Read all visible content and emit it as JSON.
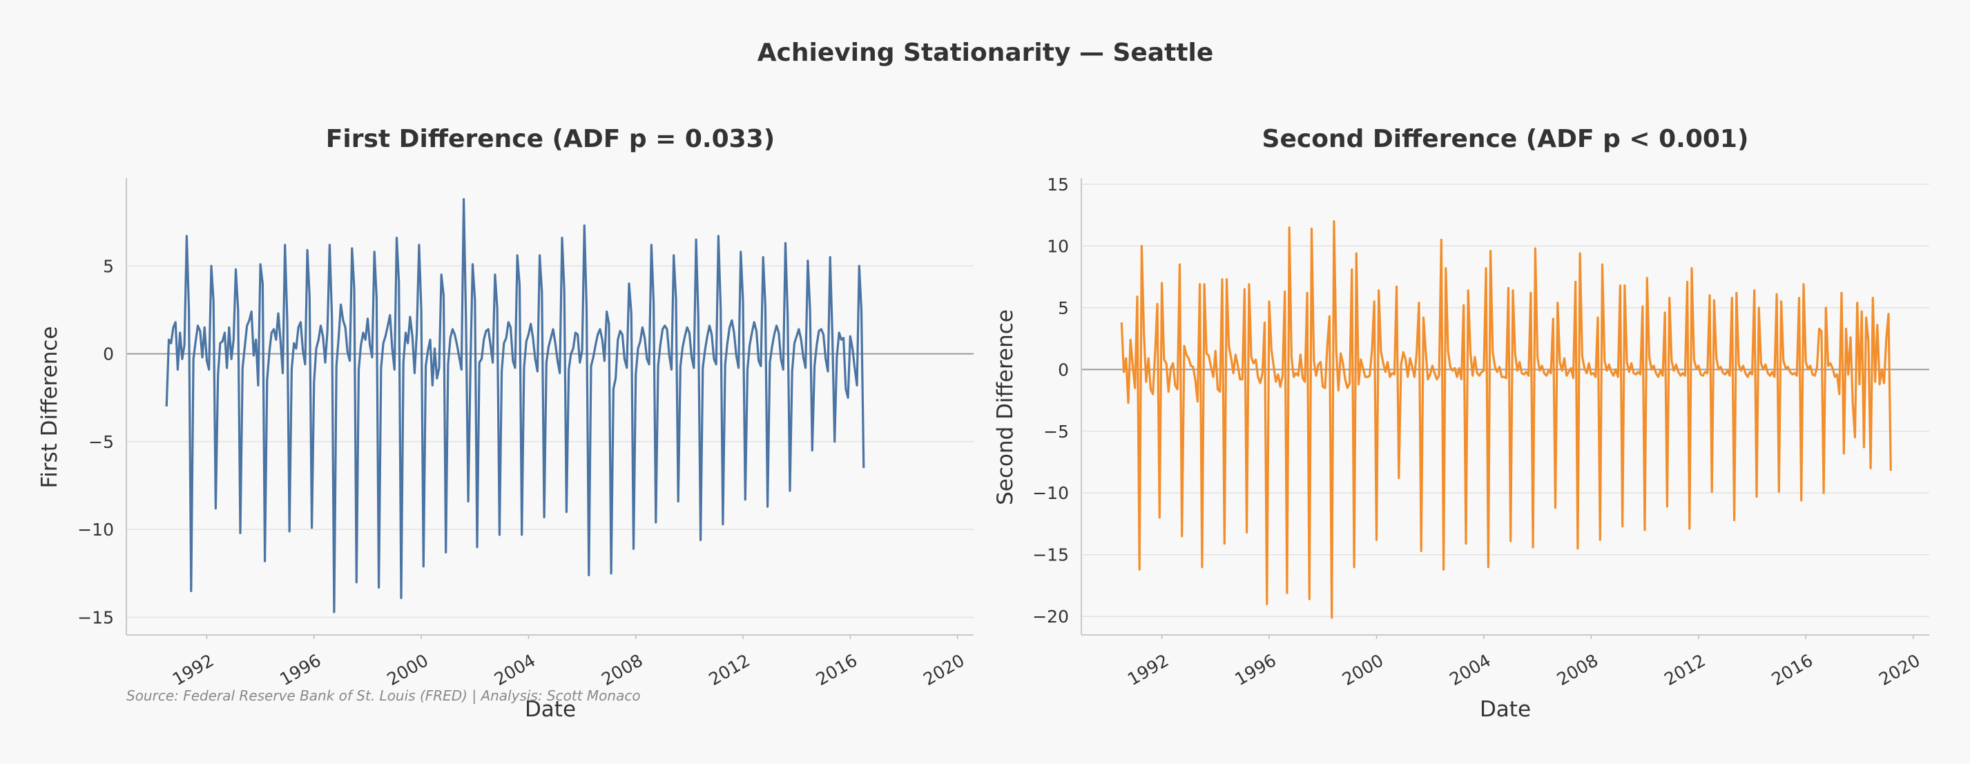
{
  "suptitle": "Achieving Stationarity — Seattle",
  "source": "Source: Federal Reserve Bank of St. Louis (FRED) | Analysis: Scott Monaco",
  "chart_data": [
    {
      "type": "line",
      "title": "First Difference (ADF p = 0.033)",
      "xlabel": "Date",
      "ylabel": "First Difference",
      "color": "#4a74a3",
      "xlim": [
        1989.0,
        2020.6
      ],
      "ylim": [
        -16,
        10
      ],
      "yticks": [
        5,
        0,
        -5,
        -10,
        -15
      ],
      "xticks": [
        1992,
        1996,
        2000,
        2004,
        2008,
        2012,
        2016,
        2020
      ],
      "grid": true,
      "zero_line": true,
      "series": [
        {
          "x_start": 1990.5,
          "step": 0.08333,
          "values": [
            -3.0,
            0.8,
            0.6,
            1.5,
            1.8,
            -0.9,
            1.2,
            -0.3,
            0.5,
            6.7,
            2.5,
            -13.5,
            -0.3,
            0.7,
            1.6,
            1.3,
            -0.2,
            1.5,
            -0.4,
            -0.9,
            5.0,
            3.0,
            -8.8,
            -1.2,
            0.6,
            0.7,
            1.2,
            -0.8,
            1.5,
            -0.3,
            0.8,
            4.8,
            2.5,
            -10.2,
            -0.8,
            0.4,
            1.6,
            1.9,
            2.4,
            -0.1,
            0.8,
            -1.8,
            5.1,
            4.0,
            -11.8,
            -1.5,
            0.1,
            1.2,
            1.4,
            0.8,
            2.3,
            0.7,
            -1.1,
            6.2,
            1.9,
            -10.1,
            -0.9,
            0.6,
            0.3,
            1.5,
            1.8,
            0.2,
            -0.6,
            5.9,
            3.3,
            -9.9,
            -1.6,
            0.3,
            0.8,
            1.6,
            1.0,
            -0.5,
            1.3,
            6.2,
            2.1,
            -14.7,
            -0.7,
            0.9,
            2.8,
            1.9,
            1.5,
            0.1,
            -0.4,
            6.0,
            3.7,
            -13.0,
            -0.9,
            0.5,
            1.2,
            0.8,
            2.0,
            0.5,
            -0.2,
            5.8,
            3.2,
            -13.3,
            -0.8,
            0.6,
            1.0,
            1.6,
            2.2,
            0.3,
            -0.9,
            6.6,
            4.1,
            -13.9,
            -0.5,
            1.2,
            0.6,
            2.1,
            1.0,
            -1.1,
            1.2,
            6.2,
            2.5,
            -12.1,
            -0.7,
            0.2,
            0.8,
            -1.8,
            0.3,
            -1.4,
            -0.8,
            4.5,
            3.3,
            -11.3,
            -0.6,
            0.9,
            1.4,
            1.1,
            0.5,
            -0.2,
            -0.9,
            8.8,
            2.0,
            -8.4,
            -0.7,
            5.1,
            3.1,
            -11.0,
            -0.5,
            -0.3,
            0.8,
            1.3,
            1.4,
            0.5,
            -0.5,
            4.5,
            2.6,
            -10.3,
            -1.0,
            0.6,
            0.9,
            1.8,
            1.5,
            -0.4,
            -0.8,
            5.6,
            3.9,
            -10.3,
            -0.8,
            0.7,
            1.1,
            1.7,
            0.9,
            -0.3,
            -1.0,
            5.6,
            3.5,
            -9.3,
            -0.5,
            0.4,
            0.9,
            1.4,
            0.6,
            -0.4,
            -1.1,
            6.6,
            3.6,
            -9.0,
            -0.9,
            0.0,
            0.3,
            1.2,
            1.1,
            -0.5,
            0.2,
            7.3,
            2.6,
            -12.6,
            -0.7,
            -0.2,
            0.5,
            1.1,
            1.4,
            0.8,
            -0.4,
            2.4,
            1.7,
            -12.5,
            -2.0,
            -1.4,
            0.8,
            1.3,
            1.1,
            -0.3,
            -0.8,
            4.0,
            2.3,
            -11.1,
            -1.2,
            0.3,
            0.7,
            1.5,
            0.9,
            -0.3,
            -0.6,
            6.2,
            2.9,
            -9.6,
            -0.7,
            0.5,
            1.4,
            1.6,
            1.4,
            -0.1,
            -0.9,
            5.6,
            3.1,
            -8.4,
            -0.7,
            0.4,
            1.0,
            1.5,
            1.2,
            -0.2,
            -0.8,
            6.5,
            2.1,
            -10.6,
            -0.8,
            0.2,
            1.0,
            1.6,
            1.1,
            -0.3,
            -0.6,
            6.7,
            2.6,
            -9.7,
            -0.6,
            0.6,
            1.5,
            1.9,
            1.2,
            -0.1,
            -0.8,
            5.8,
            3.0,
            -8.3,
            -0.9,
            0.5,
            1.2,
            1.8,
            1.3,
            -0.4,
            -0.7,
            5.5,
            2.7,
            -8.7,
            -0.5,
            0.4,
            1.1,
            1.6,
            1.2,
            -0.3,
            -0.9,
            6.3,
            2.2,
            -7.8,
            -1.0,
            0.6,
            1.0,
            1.4,
            0.8,
            -0.2,
            -0.8,
            5.3,
            2.5,
            -5.5,
            -0.7,
            0.5,
            1.3,
            1.4,
            1.1,
            -0.3,
            -1.0,
            5.5,
            1.0,
            -5.0,
            -0.2,
            1.2,
            0.8,
            0.9,
            -2.0,
            -2.5,
            1.0,
            0.3,
            -0.8,
            -1.8,
            5.0,
            2.5,
            -6.5
          ]
        }
      ]
    },
    {
      "type": "line",
      "title": "Second Difference (ADF p < 0.001)",
      "xlabel": "Date",
      "ylabel": "Second Difference",
      "color": "#f28e2b",
      "xlim": [
        1989.0,
        2020.6
      ],
      "ylim": [
        -21.5,
        15.5
      ],
      "yticks": [
        15,
        10,
        5,
        0,
        -5,
        -10,
        -15,
        -20
      ],
      "xticks": [
        1992,
        1996,
        2000,
        2004,
        2008,
        2012,
        2016,
        2020
      ],
      "grid": true,
      "zero_line": true,
      "series": [
        {
          "x_start": 1990.5,
          "step": 0.08333,
          "values": [
            3.8,
            -0.2,
            0.9,
            -2.7,
            2.4,
            0.3,
            -1.5,
            5.9,
            -16.2,
            10.0,
            2.8,
            -1.0,
            0.9,
            -1.6,
            -2.0,
            1.4,
            5.3,
            -12.0,
            7.0,
            0.8,
            0.5,
            -1.8,
            0.1,
            0.5,
            -1.3,
            -1.6,
            8.5,
            -13.5,
            1.9,
            1.2,
            0.9,
            0.3,
            0.2,
            -0.9,
            -2.6,
            6.9,
            -16.0,
            6.9,
            1.3,
            1.1,
            0.2,
            -0.6,
            1.5,
            -1.6,
            -1.8,
            7.3,
            -14.1,
            7.3,
            1.9,
            0.9,
            -0.3,
            1.2,
            0.3,
            -0.8,
            -0.8,
            6.5,
            -13.2,
            6.9,
            1.0,
            0.5,
            0.8,
            -0.6,
            -1.1,
            -0.3,
            3.8,
            -19.0,
            5.5,
            1.6,
            0.3,
            -1.0,
            -0.4,
            -1.4,
            -0.5,
            6.3,
            -18.1,
            11.5,
            1.0,
            -0.6,
            -0.3,
            -0.5,
            1.2,
            -0.7,
            -1.0,
            6.2,
            -18.6,
            11.4,
            0.7,
            -0.5,
            0.4,
            0.6,
            -1.4,
            -1.5,
            1.9,
            4.3,
            -20.1,
            12.0,
            1.5,
            -1.7,
            1.3,
            0.5,
            -0.8,
            -1.5,
            -1.1,
            8.1,
            -16.0,
            9.4,
            -1.2,
            0.8,
            0.1,
            -0.6,
            -0.6,
            -0.5,
            1.6,
            5.5,
            -13.8,
            6.4,
            1.5,
            0.5,
            -0.2,
            0.6,
            -0.6,
            -0.3,
            -0.4,
            6.7,
            -8.8,
            0.4,
            1.4,
            0.8,
            -0.6,
            0.9,
            0.2,
            -0.6,
            1.4,
            5.4,
            -14.7,
            4.2,
            1.5,
            -0.8,
            -0.4,
            0.3,
            -0.3,
            -0.8,
            -0.5,
            10.5,
            -16.2,
            8.2,
            1.5,
            0.2,
            -0.1,
            0.1,
            -0.6,
            0.1,
            -0.8,
            5.2,
            -14.1,
            6.4,
            1.4,
            -0.5,
            1.0,
            -0.3,
            -0.5,
            -0.2,
            -0.1,
            8.2,
            -16.0,
            9.6,
            1.4,
            0.2,
            -0.2,
            0.2,
            -0.6,
            -0.6,
            -0.7,
            6.6,
            -13.9,
            6.4,
            1.3,
            -0.1,
            0.6,
            -0.3,
            -0.4,
            -0.2,
            -0.5,
            6.2,
            -14.4,
            9.8,
            1.0,
            -0.1,
            0.3,
            -0.3,
            -0.5,
            -0.1,
            -0.3,
            4.1,
            -11.2,
            5.4,
            0.6,
            -0.1,
            0.9,
            -0.5,
            -0.2,
            0.1,
            -0.7,
            7.1,
            -14.5,
            9.4,
            1.1,
            0.1,
            -0.3,
            0.5,
            -0.4,
            -0.3,
            -0.6,
            4.2,
            -13.8,
            8.5,
            0.7,
            -0.1,
            0.4,
            -0.2,
            -0.5,
            0.0,
            -0.6,
            6.8,
            -12.7,
            6.8,
            0.6,
            -0.2,
            0.5,
            -0.3,
            -0.4,
            -0.2,
            -0.4,
            5.1,
            -13.0,
            7.4,
            1.0,
            0.0,
            0.3,
            -0.3,
            -0.6,
            -0.1,
            -0.5,
            4.6,
            -11.1,
            5.8,
            0.7,
            -0.1,
            0.4,
            -0.2,
            -0.5,
            -0.3,
            -0.5,
            7.1,
            -12.9,
            8.2,
            0.8,
            0.1,
            0.3,
            -0.4,
            -0.5,
            -0.2,
            -0.3,
            6.0,
            -9.9,
            5.6,
            0.9,
            0.0,
            0.2,
            -0.3,
            -0.4,
            -0.1,
            -0.5,
            5.8,
            -12.2,
            6.2,
            0.4,
            -0.1,
            0.3,
            -0.3,
            -0.6,
            -0.2,
            -0.4,
            6.4,
            -10.3,
            5.0,
            0.5,
            0.0,
            0.4,
            -0.3,
            -0.5,
            -0.2,
            -0.6,
            6.1,
            -9.9,
            5.5,
            0.7,
            0.1,
            0.2,
            -0.2,
            -0.4,
            -0.3,
            -0.5,
            5.8,
            -10.6,
            6.9,
            0.6,
            0.0,
            0.3,
            -0.4,
            -0.5,
            0.1,
            3.3,
            3.1,
            -10.0,
            5.0,
            0.3,
            0.5,
            0.1,
            -0.6,
            -0.4,
            -2.0,
            6.2,
            -6.8,
            3.3,
            -0.4,
            2.6,
            -2.7,
            -5.5,
            5.4,
            -1.2,
            4.7,
            -6.3,
            4.2,
            2.3,
            -8.0,
            5.8,
            -1.0,
            3.6,
            -1.2,
            0.0,
            -1.1,
            2.5,
            4.5,
            -8.2
          ]
        }
      ]
    }
  ]
}
